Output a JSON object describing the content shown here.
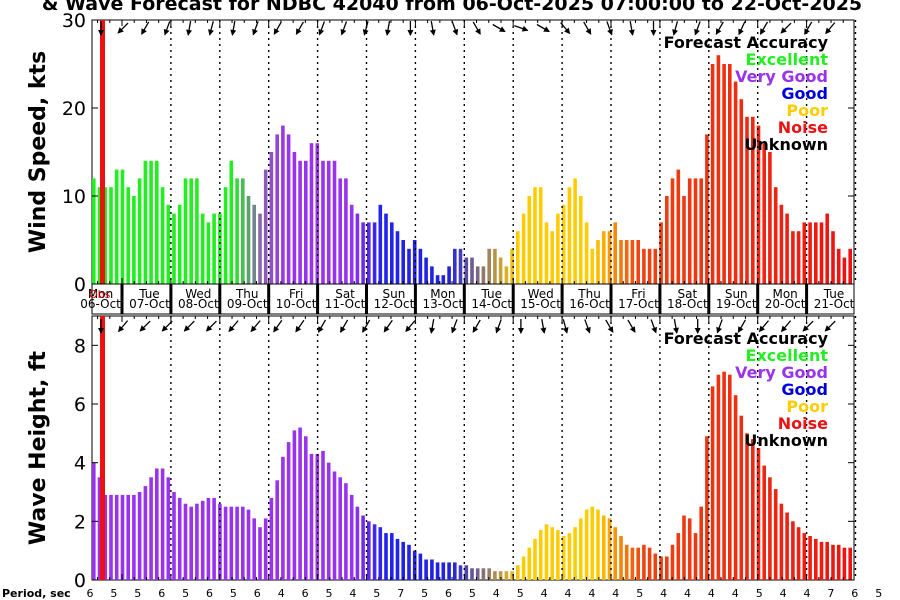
{
  "chart_data": [
    {
      "type": "bar",
      "title": "& Wave Forecast for NDBC 42040 from 06-Oct-2025 07:00:00 to 22-Oct-2025",
      "ylabel": "Wind Speed, kts",
      "ylim": [
        0,
        30
      ],
      "yticks": [
        0,
        10,
        20,
        30
      ],
      "legend": {
        "position": "top-right",
        "title": "Forecast Accuracy",
        "entries": [
          {
            "label": "Excellent",
            "color": "#22ee22"
          },
          {
            "label": "Very Good",
            "color": "#9933ee"
          },
          {
            "label": "Good",
            "color": "#0000dd"
          },
          {
            "label": "Poor",
            "color": "#ffcc00"
          },
          {
            "label": "Noise",
            "color": "#ee1111"
          },
          {
            "label": "Unknown",
            "color": "#000000"
          }
        ]
      },
      "observed_spike": 30,
      "values": [
        12,
        11,
        11,
        11,
        13,
        13,
        11,
        10,
        12,
        14,
        14,
        14,
        11,
        9,
        8,
        9,
        12,
        12,
        12,
        8,
        7,
        8,
        8,
        11,
        14,
        12,
        12,
        10,
        9,
        8,
        13,
        15,
        17,
        18,
        17,
        15,
        14,
        14,
        16,
        16,
        14,
        14,
        14,
        12,
        12,
        9,
        8,
        7,
        7,
        7,
        9,
        8,
        7,
        6,
        5,
        4,
        5,
        4,
        3,
        2,
        1,
        1,
        2,
        4,
        4,
        3,
        3,
        2,
        2,
        4,
        4,
        3,
        2,
        4,
        6,
        8,
        10,
        11,
        11,
        7,
        6,
        8,
        9,
        11,
        12,
        10,
        7,
        4,
        5,
        6,
        6,
        7,
        5,
        5,
        5,
        5,
        4,
        4,
        4,
        7,
        10,
        12,
        13,
        10,
        12,
        12,
        12,
        17,
        25,
        26,
        25,
        25,
        23,
        21,
        19,
        19,
        18,
        16,
        15,
        11,
        9,
        8,
        6,
        6,
        7,
        7,
        7,
        7,
        8,
        6,
        4,
        3,
        4
      ]
    },
    {
      "type": "bar",
      "ylabel": "Wave Height, ft",
      "xlabel": "Period, sec",
      "ylim": [
        0,
        9
      ],
      "yticks": [
        0,
        2,
        4,
        6,
        8
      ],
      "legend": {
        "position": "top-right",
        "title": "Forecast Accuracy",
        "entries": [
          {
            "label": "Excellent",
            "color": "#22ee22"
          },
          {
            "label": "Very Good",
            "color": "#9933ee"
          },
          {
            "label": "Good",
            "color": "#0000dd"
          },
          {
            "label": "Poor",
            "color": "#ffcc00"
          },
          {
            "label": "Noise",
            "color": "#ee1111"
          },
          {
            "label": "Unknown",
            "color": "#000000"
          }
        ]
      },
      "observed_spike": 9,
      "values": [
        4.0,
        3.5,
        2.9,
        2.9,
        2.9,
        2.9,
        2.9,
        2.9,
        3.0,
        3.2,
        3.5,
        3.8,
        3.8,
        3.5,
        3.0,
        2.8,
        2.6,
        2.5,
        2.6,
        2.7,
        2.8,
        2.8,
        2.6,
        2.5,
        2.5,
        2.5,
        2.5,
        2.4,
        2.1,
        1.8,
        2.1,
        2.8,
        3.4,
        4.2,
        4.7,
        5.1,
        5.2,
        4.9,
        4.3,
        4.3,
        4.4,
        4.0,
        3.7,
        3.5,
        3.3,
        2.9,
        2.5,
        2.2,
        2.0,
        1.9,
        1.8,
        1.6,
        1.6,
        1.4,
        1.3,
        1.2,
        1.0,
        0.9,
        0.7,
        0.7,
        0.6,
        0.6,
        0.6,
        0.6,
        0.5,
        0.5,
        0.4,
        0.4,
        0.4,
        0.4,
        0.3,
        0.3,
        0.3,
        0.3,
        0.5,
        0.8,
        1.1,
        1.4,
        1.7,
        1.9,
        1.8,
        1.7,
        1.5,
        1.6,
        1.8,
        2.1,
        2.4,
        2.5,
        2.4,
        2.2,
        2.1,
        1.8,
        1.5,
        1.2,
        1.1,
        1.1,
        1.2,
        1.1,
        0.9,
        0.8,
        0.8,
        1.2,
        1.6,
        2.2,
        2.1,
        1.6,
        2.5,
        4.9,
        6.6,
        7.0,
        7.1,
        7.0,
        6.3,
        5.6,
        5.0,
        4.8,
        4.5,
        3.9,
        3.5,
        3.1,
        2.6,
        2.3,
        2.0,
        1.8,
        1.6,
        1.5,
        1.4,
        1.3,
        1.3,
        1.2,
        1.2,
        1.1,
        1.1,
        1.2
      ]
    }
  ],
  "day_labels": [
    {
      "dow": "Mon",
      "date": "06-Oct"
    },
    {
      "dow": "Tue",
      "date": "07-Oct"
    },
    {
      "dow": "Wed",
      "date": "08-Oct"
    },
    {
      "dow": "Thu",
      "date": "09-Oct"
    },
    {
      "dow": "Fri",
      "date": "10-Oct"
    },
    {
      "dow": "Sat",
      "date": "11-Oct"
    },
    {
      "dow": "Sun",
      "date": "12-Oct"
    },
    {
      "dow": "Mon",
      "date": "13-Oct"
    },
    {
      "dow": "Tue",
      "date": "14-Oct"
    },
    {
      "dow": "Wed",
      "date": "15-Oct"
    },
    {
      "dow": "Thu",
      "date": "16-Oct"
    },
    {
      "dow": "Fri",
      "date": "17-Oct"
    },
    {
      "dow": "Sat",
      "date": "18-Oct"
    },
    {
      "dow": "Sun",
      "date": "19-Oct"
    },
    {
      "dow": "Mon",
      "date": "20-Oct"
    },
    {
      "dow": "Tue",
      "date": "21-Oct"
    }
  ],
  "obs_marker": "Obs",
  "periods": [
    6,
    5,
    5,
    6,
    5,
    6,
    5,
    6,
    4,
    6,
    5,
    4,
    5,
    7,
    5,
    6,
    5,
    4,
    5,
    4,
    4,
    4,
    4,
    5,
    4,
    4,
    4,
    4,
    5,
    4,
    4,
    7,
    6,
    5,
    5,
    6,
    6,
    6,
    5
  ],
  "wind_dir_deg": [
    0,
    45,
    30,
    20,
    10,
    15,
    10,
    20,
    30,
    30,
    20,
    20,
    15,
    10,
    0,
    350,
    340,
    330,
    300,
    290,
    300,
    320,
    330,
    340,
    350,
    0,
    15,
    20,
    30,
    25,
    30,
    45,
    30,
    40
  ],
  "wave_dir_deg": [
    0,
    40,
    45,
    45,
    45,
    45,
    40,
    40,
    35,
    35,
    30,
    30,
    30,
    35,
    40,
    10,
    20,
    30,
    20,
    0,
    350,
    345,
    340,
    330,
    330,
    340,
    350,
    0,
    20,
    30,
    40,
    40,
    45,
    45
  ]
}
